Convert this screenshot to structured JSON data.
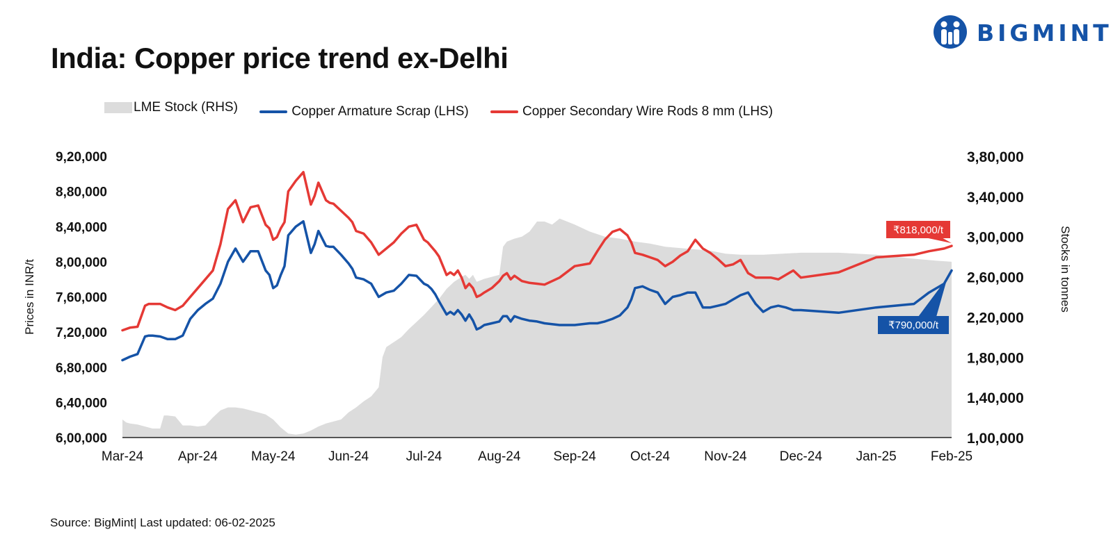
{
  "header": {
    "title": "India: Copper price trend ex-Delhi",
    "brand": "BIGMINT",
    "brand_color": "#1553a7"
  },
  "footer": {
    "source": "Source: BigMint| Last updated: 06-02-2025"
  },
  "chart_data": {
    "type": "line",
    "title": "India: Copper price trend ex-Delhi",
    "ylabel_left": "Prices in INR/t",
    "ylabel_right": "Stocks in tonnes",
    "ylim_left": [
      600000,
      920000
    ],
    "ylim_right": [
      100000,
      380000
    ],
    "yticks_left": [
      "6,00,000",
      "6,40,000",
      "6,80,000",
      "7,20,000",
      "7,60,000",
      "8,00,000",
      "8,40,000",
      "8,80,000",
      "9,20,000"
    ],
    "yticks_right": [
      "1,00,000",
      "1,40,000",
      "1,80,000",
      "2,20,000",
      "2,60,000",
      "3,00,000",
      "3,40,000",
      "3,80,000"
    ],
    "xticks": [
      "Mar-24",
      "Apr-24",
      "May-24",
      "Jun-24",
      "Jul-24",
      "Aug-24",
      "Sep-24",
      "Oct-24",
      "Nov-24",
      "Dec-24",
      "Jan-25",
      "Feb-25"
    ],
    "legend_position": "top-left",
    "grid": false,
    "series": [
      {
        "name": "LME Stock (RHS)",
        "type": "area",
        "axis": "right",
        "color": "#dcdcdc",
        "x": [
          0,
          0.05,
          0.1,
          0.2,
          0.3,
          0.4,
          0.5,
          0.55,
          0.6,
          0.7,
          0.8,
          0.9,
          1.0,
          1.1,
          1.2,
          1.3,
          1.4,
          1.5,
          1.6,
          1.7,
          1.8,
          1.9,
          2.0,
          2.1,
          2.2,
          2.3,
          2.4,
          2.5,
          2.6,
          2.7,
          2.8,
          2.9,
          3.0,
          3.1,
          3.2,
          3.3,
          3.4,
          3.45,
          3.5,
          3.6,
          3.7,
          3.8,
          3.9,
          4.0,
          4.1,
          4.2,
          4.3,
          4.4,
          4.5,
          4.55,
          4.6,
          4.65,
          4.7,
          4.8,
          4.9,
          5.0,
          5.05,
          5.1,
          5.2,
          5.3,
          5.4,
          5.5,
          5.6,
          5.7,
          5.8,
          5.9,
          6.0,
          6.2,
          6.4,
          6.6,
          6.8,
          7.0,
          7.2,
          7.5,
          7.8,
          8.0,
          8.2,
          8.5,
          9.0,
          9.5,
          10.0,
          10.5,
          10.8,
          11.0
        ],
        "values": [
          118000,
          115000,
          114000,
          113000,
          111000,
          109000,
          109000,
          122000,
          122000,
          121000,
          112000,
          112000,
          111000,
          112000,
          120000,
          127000,
          130000,
          130000,
          129000,
          127000,
          125000,
          123000,
          118000,
          110000,
          104000,
          103000,
          104000,
          107000,
          111000,
          114000,
          116000,
          118000,
          125000,
          130000,
          136000,
          141000,
          150000,
          180000,
          190000,
          195000,
          200000,
          208000,
          215000,
          222000,
          230000,
          238000,
          248000,
          255000,
          260000,
          262000,
          258000,
          262000,
          255000,
          258000,
          260000,
          262000,
          290000,
          295000,
          298000,
          300000,
          305000,
          315000,
          315000,
          312000,
          318000,
          315000,
          312000,
          305000,
          300000,
          298000,
          295000,
          293000,
          290000,
          288000,
          286000,
          283000,
          282000,
          282000,
          284000,
          284000,
          282000,
          278000,
          276000,
          275000
        ]
      },
      {
        "name": "Copper Armature Scrap (LHS)",
        "type": "line",
        "axis": "left",
        "color": "#1553a7",
        "x": [
          0,
          0.1,
          0.2,
          0.3,
          0.35,
          0.4,
          0.5,
          0.6,
          0.7,
          0.8,
          0.9,
          1.0,
          1.1,
          1.2,
          1.3,
          1.4,
          1.5,
          1.6,
          1.7,
          1.8,
          1.9,
          1.95,
          2.0,
          2.05,
          2.1,
          2.15,
          2.2,
          2.3,
          2.4,
          2.5,
          2.55,
          2.6,
          2.7,
          2.75,
          2.8,
          2.9,
          3.0,
          3.05,
          3.1,
          3.2,
          3.3,
          3.4,
          3.5,
          3.6,
          3.7,
          3.8,
          3.9,
          4.0,
          4.05,
          4.1,
          4.15,
          4.2,
          4.3,
          4.35,
          4.4,
          4.45,
          4.5,
          4.55,
          4.6,
          4.65,
          4.7,
          4.75,
          4.8,
          4.9,
          5.0,
          5.05,
          5.1,
          5.15,
          5.2,
          5.3,
          5.4,
          5.5,
          5.6,
          5.8,
          6.0,
          6.2,
          6.3,
          6.4,
          6.5,
          6.6,
          6.7,
          6.75,
          6.8,
          6.9,
          7.0,
          7.1,
          7.2,
          7.3,
          7.4,
          7.5,
          7.6,
          7.7,
          7.8,
          7.9,
          8.0,
          8.1,
          8.2,
          8.3,
          8.4,
          8.5,
          8.6,
          8.7,
          8.8,
          8.9,
          9.0,
          9.5,
          10.0,
          10.5,
          10.7,
          10.9,
          11.0
        ],
        "values": [
          688000,
          692000,
          695000,
          715000,
          716000,
          716000,
          715000,
          712000,
          712000,
          716000,
          735000,
          745000,
          752000,
          758000,
          775000,
          800000,
          815000,
          800000,
          812000,
          812000,
          790000,
          785000,
          770000,
          773000,
          785000,
          795000,
          830000,
          840000,
          846000,
          810000,
          820000,
          835000,
          818000,
          817000,
          817000,
          808000,
          798000,
          792000,
          782000,
          780000,
          775000,
          760000,
          765000,
          767000,
          775000,
          785000,
          784000,
          775000,
          773000,
          769000,
          763000,
          755000,
          740000,
          743000,
          740000,
          745000,
          740000,
          733000,
          740000,
          733000,
          723000,
          725000,
          728000,
          730000,
          732000,
          738000,
          738000,
          732000,
          738000,
          735000,
          733000,
          732000,
          730000,
          728000,
          728000,
          730000,
          730000,
          732000,
          735000,
          739000,
          748000,
          757000,
          770000,
          772000,
          768000,
          765000,
          752000,
          760000,
          762000,
          765000,
          765000,
          748000,
          748000,
          750000,
          752000,
          757000,
          762000,
          765000,
          752000,
          743000,
          748000,
          750000,
          748000,
          745000,
          745000,
          742000,
          748000,
          752000,
          765000,
          775000,
          790000
        ]
      },
      {
        "name": "Copper Secondary Wire Rods 8 mm (LHS)",
        "type": "line",
        "axis": "left",
        "color": "#e53935",
        "x": [
          0,
          0.1,
          0.2,
          0.3,
          0.35,
          0.4,
          0.5,
          0.6,
          0.7,
          0.8,
          0.9,
          1.0,
          1.1,
          1.2,
          1.3,
          1.4,
          1.5,
          1.6,
          1.7,
          1.8,
          1.9,
          1.95,
          2.0,
          2.05,
          2.1,
          2.15,
          2.2,
          2.3,
          2.4,
          2.5,
          2.55,
          2.6,
          2.7,
          2.75,
          2.8,
          2.9,
          3.0,
          3.05,
          3.1,
          3.2,
          3.3,
          3.4,
          3.5,
          3.6,
          3.7,
          3.8,
          3.9,
          4.0,
          4.05,
          4.1,
          4.15,
          4.2,
          4.3,
          4.35,
          4.4,
          4.45,
          4.5,
          4.55,
          4.6,
          4.65,
          4.7,
          4.75,
          4.8,
          4.9,
          5.0,
          5.05,
          5.1,
          5.15,
          5.2,
          5.3,
          5.4,
          5.5,
          5.6,
          5.8,
          6.0,
          6.2,
          6.3,
          6.4,
          6.5,
          6.6,
          6.7,
          6.75,
          6.8,
          6.9,
          7.0,
          7.1,
          7.2,
          7.3,
          7.4,
          7.5,
          7.6,
          7.7,
          7.8,
          7.9,
          8.0,
          8.1,
          8.2,
          8.3,
          8.4,
          8.5,
          8.6,
          8.7,
          8.8,
          8.9,
          9.0,
          9.5,
          10.0,
          10.5,
          10.7,
          10.9,
          11.0
        ],
        "values": [
          722000,
          725000,
          726000,
          750000,
          752000,
          752000,
          752000,
          748000,
          745000,
          750000,
          760000,
          770000,
          780000,
          790000,
          820000,
          860000,
          870000,
          845000,
          862000,
          864000,
          842000,
          838000,
          825000,
          828000,
          838000,
          845000,
          880000,
          892000,
          902000,
          865000,
          875000,
          890000,
          870000,
          867000,
          866000,
          858000,
          850000,
          845000,
          835000,
          832000,
          822000,
          808000,
          815000,
          822000,
          832000,
          840000,
          842000,
          825000,
          822000,
          817000,
          812000,
          806000,
          785000,
          788000,
          785000,
          790000,
          782000,
          770000,
          775000,
          770000,
          760000,
          762000,
          765000,
          770000,
          778000,
          784000,
          787000,
          780000,
          784000,
          778000,
          776000,
          775000,
          774000,
          782000,
          795000,
          798000,
          812000,
          825000,
          834000,
          837000,
          830000,
          822000,
          810000,
          808000,
          805000,
          802000,
          795000,
          800000,
          807000,
          812000,
          825000,
          815000,
          810000,
          803000,
          795000,
          797000,
          802000,
          787000,
          782000,
          782000,
          782000,
          780000,
          785000,
          790000,
          782000,
          788000,
          805000,
          808000,
          812000,
          815000,
          818000
        ]
      }
    ],
    "annotations": [
      {
        "text": "₹818,000/t",
        "series": "Copper Secondary Wire Rods 8 mm (LHS)",
        "color": "#e53935"
      },
      {
        "text": "₹790,000/t",
        "series": "Copper Armature Scrap (LHS)",
        "color": "#1553a7"
      }
    ]
  }
}
